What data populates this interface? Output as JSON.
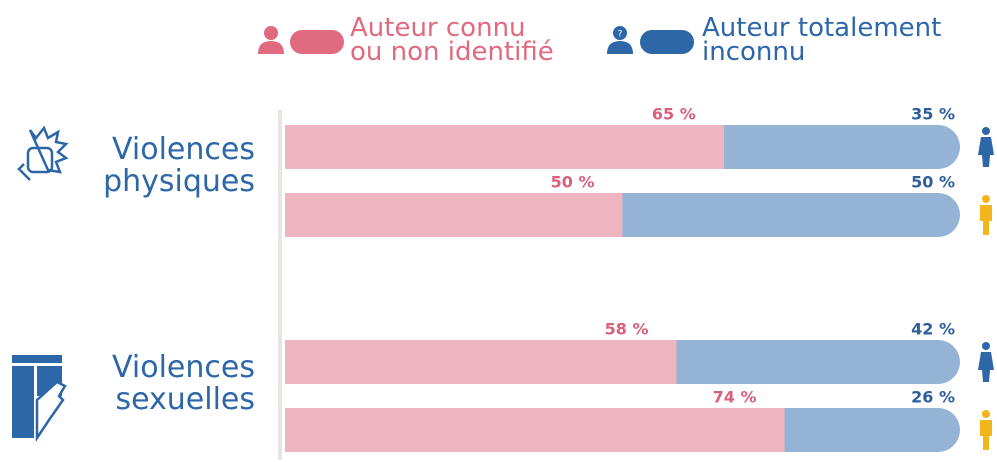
{
  "chart_data": {
    "type": "bar",
    "orientation": "horizontal",
    "stacked": true,
    "group_labels": [
      "Violences physiques",
      "Violences sexuelles"
    ],
    "categories": [
      null,
      null,
      null,
      null
    ],
    "xlim": [
      0,
      100
    ],
    "series": [
      {
        "name": "Auteur connu ou non identifié",
        "color": "#eeb4c0",
        "legend_color": "#e06b80",
        "label_color": "#d9607a",
        "values": [
          65,
          50,
          58,
          74
        ],
        "value_labels": [
          "65 %",
          "50 %",
          "58 %",
          "74 %"
        ]
      },
      {
        "name": "Auteur totalement inconnu",
        "color": "#95b3d5",
        "legend_color": "#2d67a8",
        "label_color": "#2e5e9a",
        "values": [
          35,
          50,
          42,
          26
        ],
        "value_labels": [
          "35 %",
          "50 %",
          "42 %",
          "26 %"
        ]
      }
    ]
  }
}
